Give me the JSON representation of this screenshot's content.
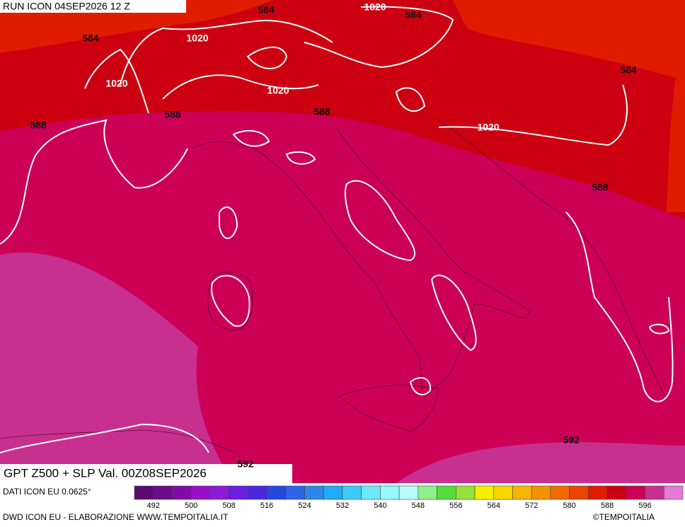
{
  "header": {
    "run": "RUN ICON 04SEP2026 12 Z"
  },
  "map": {
    "title": "GPT Z500 + SLP Val. 00Z08SEP2026",
    "contour_labels": [
      584,
      1020,
      584,
      584,
      1020,
      1020,
      1020,
      588,
      588,
      588,
      1020,
      584,
      588,
      592,
      592
    ]
  },
  "footer": {
    "source": "DATI ICON EU 0.0625°",
    "credit": "DWD ICON EU - ELABORAZIONE WWW.TEMPOITALIA.IT",
    "copyright": "©TEMPOITALIA"
  },
  "colorbar": {
    "labels": [
      492,
      500,
      508,
      516,
      524,
      532,
      540,
      548,
      556,
      564,
      572,
      580,
      588,
      596
    ],
    "colors": [
      "#5a0a6e",
      "#6e0a8c",
      "#820aa8",
      "#9a10c8",
      "#8c1ad8",
      "#6a1ee0",
      "#4a28e0",
      "#2846e0",
      "#2e64e6",
      "#2e86ec",
      "#22aaf4",
      "#3ecaf8",
      "#6ee8fc",
      "#96f8fc",
      "#b8fcfc",
      "#8ef08a",
      "#52dc3e",
      "#9ae03c",
      "#f4f000",
      "#f8d600",
      "#f8b400",
      "#f49000",
      "#f06a00",
      "#ea4400",
      "#e01c00",
      "#cc0010",
      "#cc0055",
      "#c83090",
      "#e878d8"
    ]
  }
}
